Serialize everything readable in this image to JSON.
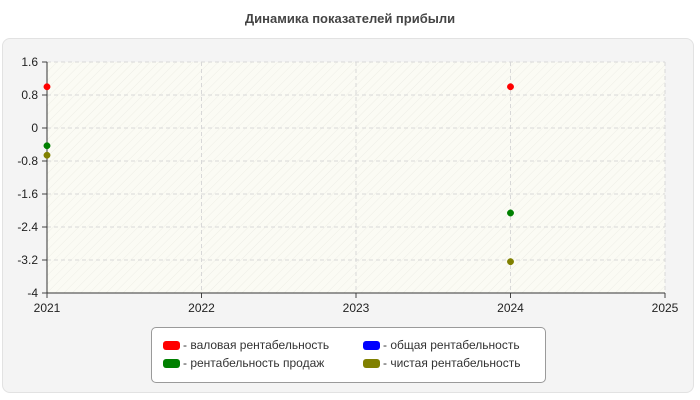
{
  "chart_data": {
    "type": "scatter",
    "title": "Динамика показателей прибыли",
    "xlabel": "",
    "ylabel": "",
    "xlim": [
      2021,
      2025
    ],
    "ylim": [
      -4,
      1.6
    ],
    "x_ticks": [
      "2021",
      "2022",
      "2023",
      "2024",
      "2025"
    ],
    "y_ticks": [
      "1.6",
      "0.8",
      "0",
      "-0.8",
      "-1.6",
      "-2.4",
      "-3.2",
      "-4"
    ],
    "grid": true,
    "legend_position": "bottom",
    "series": [
      {
        "name": "- валовая рентабельность",
        "color": "#ff0000",
        "points": [
          {
            "x": 2021,
            "y": 1.0
          },
          {
            "x": 2024,
            "y": 1.0
          }
        ]
      },
      {
        "name": "- общая рентабельность",
        "color": "#0000ff",
        "points": []
      },
      {
        "name": "- рентабельность продаж",
        "color": "#008000",
        "points": [
          {
            "x": 2021,
            "y": -0.43
          },
          {
            "x": 2024,
            "y": -2.06
          }
        ]
      },
      {
        "name": "- чистая рентабельность",
        "color": "#808000",
        "points": [
          {
            "x": 2021,
            "y": -0.66
          },
          {
            "x": 2024,
            "y": -3.24
          }
        ]
      }
    ]
  }
}
